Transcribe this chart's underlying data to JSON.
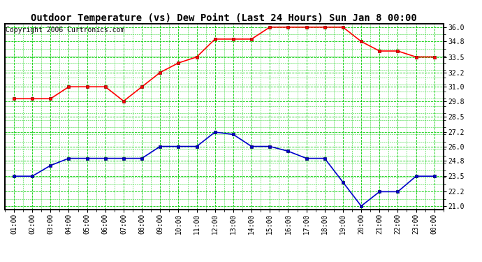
{
  "title": "Outdoor Temperature (vs) Dew Point (Last 24 Hours) Sun Jan 8 00:00",
  "copyright": "Copyright 2006 Curtronics.com",
  "x_labels": [
    "01:00",
    "02:00",
    "03:00",
    "04:00",
    "05:00",
    "06:00",
    "07:00",
    "08:00",
    "09:00",
    "10:00",
    "11:00",
    "12:00",
    "13:00",
    "14:00",
    "15:00",
    "16:00",
    "17:00",
    "18:00",
    "19:00",
    "20:00",
    "21:00",
    "22:00",
    "23:00",
    "00:00"
  ],
  "temp_values": [
    30.0,
    30.0,
    30.0,
    31.0,
    31.0,
    31.0,
    29.8,
    31.0,
    32.2,
    33.0,
    33.5,
    35.0,
    35.0,
    35.0,
    36.0,
    36.0,
    36.0,
    36.0,
    36.0,
    34.8,
    34.0,
    34.0,
    33.5,
    33.5
  ],
  "dew_values": [
    23.5,
    23.5,
    24.4,
    25.0,
    25.0,
    25.0,
    25.0,
    25.0,
    26.0,
    26.0,
    26.0,
    27.2,
    27.0,
    26.0,
    26.0,
    25.6,
    25.0,
    25.0,
    23.0,
    21.0,
    22.2,
    22.2,
    23.5,
    23.5
  ],
  "temp_color": "#ff0000",
  "dew_color": "#0000cc",
  "grid_color": "#00cc00",
  "bg_color": "#ffffff",
  "plot_bg_color": "#ffffff",
  "y_min": 21.0,
  "y_max": 36.0,
  "y_ticks": [
    21.0,
    22.2,
    23.5,
    24.8,
    26.0,
    27.2,
    28.5,
    29.8,
    31.0,
    32.2,
    33.5,
    34.8,
    36.0
  ],
  "title_fontsize": 10,
  "tick_fontsize": 7,
  "copyright_fontsize": 7,
  "marker": "s",
  "marker_size": 2.5,
  "line_width": 1.2
}
